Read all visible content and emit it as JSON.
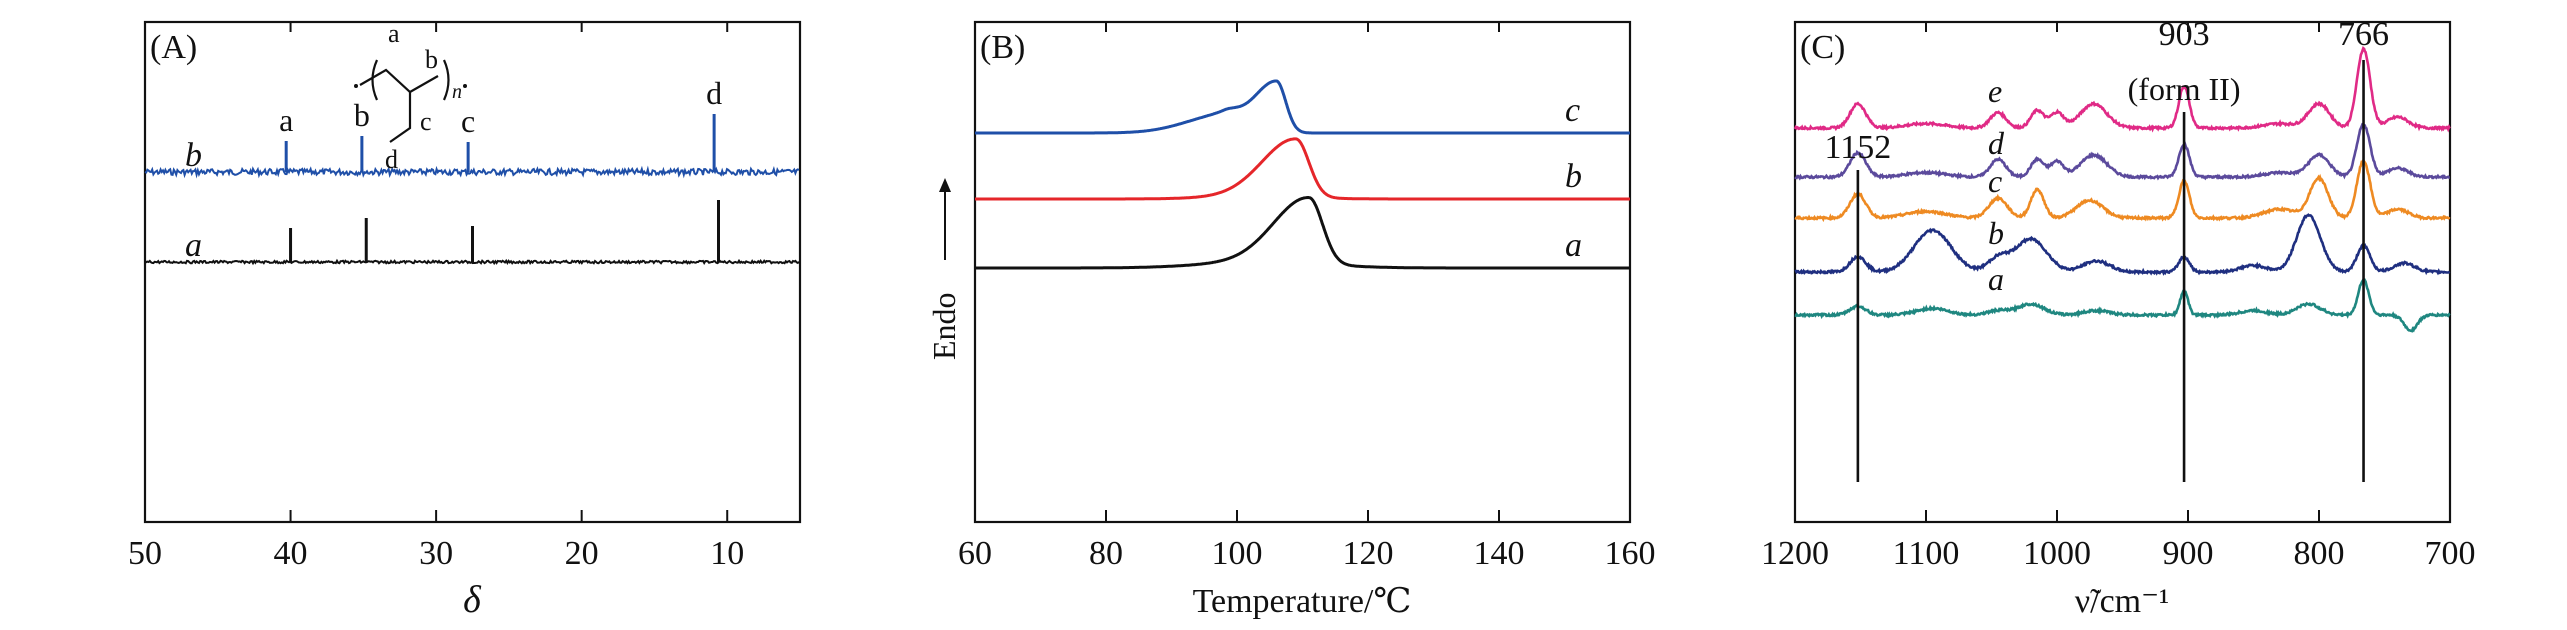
{
  "figure": {
    "colors": {
      "black": "#111111",
      "blue": "#1f4fa8",
      "red": "#e5262a",
      "pink": "#e02a86",
      "purple": "#5b4a9c",
      "orange": "#ee8a22",
      "navy": "#1f2f80",
      "teal": "#1f8780"
    }
  },
  "chart_data": [
    {
      "type": "line",
      "panel_label": "(A)",
      "title": "",
      "xlabel": "δ",
      "ylabel": "",
      "xlim": [
        50,
        5
      ],
      "xticks": [
        50,
        40,
        30,
        20,
        10
      ],
      "x_reversed": true,
      "structure_labels": {
        "a": "a",
        "b": "b",
        "c": "c",
        "d": "d",
        "repeat": "n"
      },
      "series": [
        {
          "name": "b",
          "color": "#1f4fa8",
          "peaks": [
            40.3,
            35.1,
            27.8,
            10.9
          ],
          "peak_labels": [
            "a",
            "b",
            "c",
            "d"
          ],
          "peak_heights": [
            0.31,
            0.36,
            0.3,
            0.58
          ]
        },
        {
          "name": "a",
          "color": "#111111",
          "peaks": [
            40.0,
            34.8,
            27.5,
            10.6
          ],
          "peak_labels": [],
          "peak_heights": [
            0.34,
            0.44,
            0.36,
            0.62
          ]
        }
      ]
    },
    {
      "type": "line",
      "panel_label": "(B)",
      "title": "",
      "xlabel": "Temperature/℃",
      "ylabel": "Endo",
      "xlim": [
        60,
        160
      ],
      "xticks": [
        60,
        80,
        100,
        120,
        140,
        160
      ],
      "series": [
        {
          "name": "c",
          "color": "#1f4fa8",
          "peaks": [
            {
              "x": 98,
              "height": 0.18,
              "width": 2.5
            },
            {
              "x": 106,
              "height": 0.52,
              "width": 1.6
            }
          ]
        },
        {
          "name": "b",
          "color": "#e5262a",
          "peaks": [
            {
              "x": 109,
              "height": 0.58,
              "width": 2.2
            }
          ]
        },
        {
          "name": "a",
          "color": "#111111",
          "peaks": [
            {
              "x": 111,
              "height": 0.66,
              "width": 2.3
            }
          ]
        }
      ]
    },
    {
      "type": "line",
      "panel_label": "(C)",
      "title": "",
      "xlabel": "ν̃/cm⁻¹",
      "ylabel": "",
      "xlim": [
        1200,
        700
      ],
      "xticks": [
        1200,
        1100,
        1000,
        900,
        800,
        700
      ],
      "x_reversed": true,
      "marker_lines": [
        {
          "x": 1152,
          "label": "1152",
          "label2": ""
        },
        {
          "x": 903,
          "label": "903",
          "label2": "(form II)"
        },
        {
          "x": 766,
          "label": "766",
          "label2": ""
        }
      ],
      "series": [
        {
          "name": "e",
          "color": "#e02a86"
        },
        {
          "name": "d",
          "color": "#5b4a9c"
        },
        {
          "name": "c",
          "color": "#ee8a22"
        },
        {
          "name": "b",
          "color": "#1f2f80"
        },
        {
          "name": "a",
          "color": "#1f8780"
        }
      ]
    }
  ]
}
